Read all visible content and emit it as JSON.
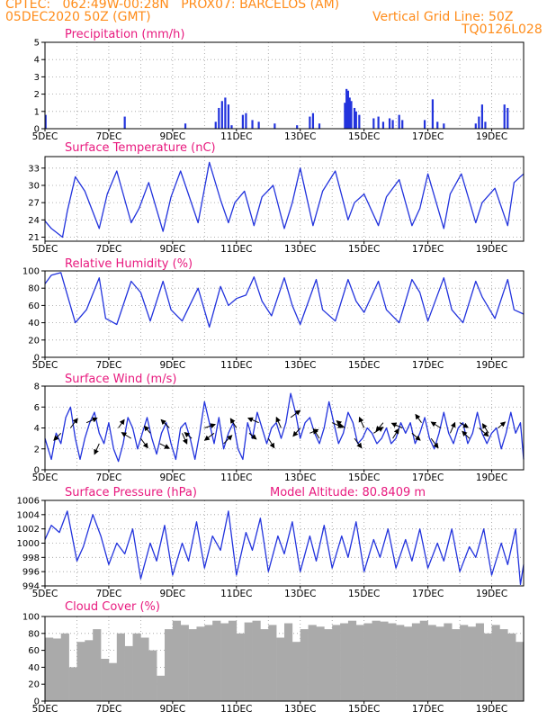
{
  "header": {
    "line1": "CPTEC:   062:49W-00:28N   PROX07: BARCELOS (AM)",
    "line2": "05DEC2020 50Z (GMT)",
    "grid_line": "Vertical Grid Line: 50Z",
    "code": "TQ0126L028"
  },
  "panel_titles": {
    "precip": "Precipitation  (mm/h)",
    "temp": "Surface Temperature  (nC)",
    "rh": "Relative Humidity  (%)",
    "wind": "Surface Wind  (m/s)",
    "pres": "Surface Pressure  (hPa)",
    "altitude": "Model Altitude:  80.8409  m",
    "cloud": "Cloud Cover  (%)"
  },
  "x_axis": {
    "labels": [
      "5DEC",
      "7DEC",
      "9DEC",
      "11DEC",
      "13DEC",
      "15DEC",
      "17DEC",
      "19DEC"
    ],
    "label_days": [
      5,
      7,
      9,
      11,
      13,
      15,
      17,
      19
    ],
    "start_day": 5,
    "end_day": 20,
    "grid": "dotted vertical lines each day"
  },
  "colors": {
    "header": "#ff8c1a",
    "title": "#e8197e",
    "series": "#2233dd",
    "cloud": "#aaaaaa",
    "frame": "#000000"
  },
  "chart_data": [
    {
      "type": "bar",
      "title": "Precipitation  (mm/h)",
      "ylim": [
        0,
        5
      ],
      "yticks": [
        0,
        1,
        2,
        3,
        4,
        5
      ],
      "x": [
        5.02,
        7.5,
        9.4,
        10.35,
        10.45,
        10.55,
        10.65,
        10.75,
        10.85,
        11.2,
        11.3,
        11.5,
        11.7,
        12.2,
        12.9,
        13.3,
        13.4,
        13.6,
        14.4,
        14.45,
        14.5,
        14.55,
        14.6,
        14.7,
        14.75,
        14.85,
        15.3,
        15.45,
        15.6,
        15.8,
        15.9,
        16.1,
        16.2,
        16.9,
        17.15,
        17.3,
        17.5,
        18.5,
        18.6,
        18.7,
        18.8,
        19.4,
        19.5
      ],
      "values": [
        0.8,
        0.7,
        0.3,
        0.4,
        1.2,
        1.6,
        1.8,
        1.4,
        0.2,
        0.8,
        0.9,
        0.5,
        0.4,
        0.3,
        0.2,
        0.7,
        0.9,
        0.3,
        1.5,
        2.3,
        2.2,
        1.8,
        1.6,
        1.2,
        1.0,
        0.8,
        0.6,
        0.7,
        0.4,
        0.6,
        0.5,
        0.8,
        0.5,
        0.5,
        1.7,
        0.4,
        0.3,
        0.3,
        0.7,
        1.4,
        0.4,
        1.4,
        1.2
      ]
    },
    {
      "type": "line",
      "title": "Surface Temperature  (nC)",
      "ylim": [
        20.3,
        35
      ],
      "yticks": [
        21,
        24,
        27,
        30,
        33
      ],
      "x": [
        5.0,
        5.2,
        5.55,
        5.7,
        5.95,
        6.25,
        6.7,
        6.95,
        7.25,
        7.7,
        7.95,
        8.25,
        8.7,
        8.95,
        9.25,
        9.8,
        10.15,
        10.5,
        10.75,
        10.95,
        11.25,
        11.55,
        11.8,
        12.15,
        12.5,
        12.75,
        13.0,
        13.4,
        13.7,
        14.1,
        14.5,
        14.7,
        15.0,
        15.45,
        15.7,
        16.1,
        16.5,
        16.75,
        17.0,
        17.5,
        17.7,
        18.05,
        18.5,
        18.7,
        19.1,
        19.5,
        19.7,
        20.0
      ],
      "values": [
        23.8,
        22.5,
        21.0,
        25.5,
        31.5,
        29.0,
        22.5,
        28.5,
        32.5,
        23.5,
        26.0,
        30.5,
        22.0,
        28.0,
        32.5,
        23.5,
        34.0,
        27.5,
        23.5,
        27.0,
        29.0,
        23.0,
        28.0,
        30.0,
        22.5,
        27.0,
        33.0,
        23.0,
        29.0,
        32.5,
        24.0,
        27.0,
        28.5,
        23.0,
        28.0,
        31.0,
        23.0,
        26.0,
        32.0,
        22.5,
        28.5,
        32.0,
        23.5,
        27.0,
        29.5,
        23.0,
        30.5,
        32.0
      ]
    },
    {
      "type": "line",
      "title": "Relative Humidity  (%)",
      "ylim": [
        0,
        100
      ],
      "yticks": [
        0,
        20,
        40,
        60,
        80,
        100
      ],
      "x": [
        5.0,
        5.2,
        5.5,
        5.95,
        6.3,
        6.7,
        6.9,
        7.25,
        7.7,
        8.0,
        8.3,
        8.7,
        8.95,
        9.3,
        9.8,
        10.15,
        10.5,
        10.75,
        11.0,
        11.3,
        11.55,
        11.8,
        12.1,
        12.5,
        12.75,
        13.0,
        13.5,
        13.7,
        14.1,
        14.5,
        14.75,
        15.0,
        15.45,
        15.7,
        16.1,
        16.5,
        16.75,
        17.0,
        17.5,
        17.75,
        18.1,
        18.5,
        18.7,
        19.1,
        19.5,
        19.7,
        20.0
      ],
      "values": [
        85,
        95,
        98,
        40,
        55,
        92,
        45,
        38,
        88,
        75,
        42,
        88,
        55,
        42,
        80,
        35,
        82,
        60,
        68,
        72,
        93,
        65,
        48,
        92,
        60,
        38,
        90,
        55,
        42,
        90,
        65,
        52,
        88,
        55,
        40,
        90,
        75,
        42,
        92,
        55,
        40,
        88,
        70,
        45,
        90,
        55,
        50
      ]
    },
    {
      "type": "line",
      "title": "Surface Wind  (m/s)",
      "ylim": [
        0,
        8
      ],
      "yticks": [
        0,
        2,
        4,
        6,
        8
      ],
      "x": [
        5.0,
        5.1,
        5.2,
        5.35,
        5.5,
        5.65,
        5.8,
        5.95,
        6.1,
        6.25,
        6.4,
        6.55,
        6.7,
        6.85,
        7.0,
        7.15,
        7.3,
        7.45,
        7.6,
        7.75,
        7.9,
        8.05,
        8.2,
        8.35,
        8.5,
        8.65,
        8.8,
        8.95,
        9.1,
        9.25,
        9.4,
        9.55,
        9.7,
        9.85,
        10.0,
        10.15,
        10.3,
        10.45,
        10.6,
        10.75,
        10.9,
        11.05,
        11.2,
        11.35,
        11.5,
        11.65,
        11.8,
        11.95,
        12.1,
        12.25,
        12.4,
        12.55,
        12.7,
        12.85,
        13.0,
        13.15,
        13.3,
        13.45,
        13.6,
        13.75,
        13.9,
        14.05,
        14.2,
        14.35,
        14.5,
        14.65,
        14.8,
        14.95,
        15.1,
        15.25,
        15.4,
        15.55,
        15.7,
        15.85,
        16.0,
        16.15,
        16.3,
        16.45,
        16.6,
        16.75,
        16.9,
        17.05,
        17.2,
        17.35,
        17.5,
        17.65,
        17.8,
        17.95,
        18.1,
        18.25,
        18.4,
        18.55,
        18.7,
        18.85,
        19.0,
        19.15,
        19.3,
        19.45,
        19.6,
        19.75,
        19.9,
        20.0
      ],
      "values": [
        3.0,
        2.0,
        1.0,
        3.5,
        2.5,
        5.0,
        6.0,
        3.0,
        1.0,
        3.0,
        4.5,
        5.5,
        3.5,
        2.5,
        4.5,
        2.0,
        0.8,
        2.5,
        5.0,
        4.0,
        2.0,
        3.5,
        5.0,
        3.0,
        1.5,
        3.5,
        4.5,
        2.5,
        1.0,
        4.0,
        4.5,
        3.0,
        1.0,
        3.5,
        6.5,
        4.5,
        2.5,
        5.0,
        2.0,
        3.5,
        4.5,
        2.0,
        1.0,
        4.5,
        3.0,
        5.5,
        4.0,
        2.5,
        4.0,
        4.5,
        3.0,
        4.5,
        7.3,
        5.5,
        3.0,
        4.5,
        5.0,
        3.5,
        2.5,
        4.0,
        6.5,
        4.5,
        2.5,
        3.5,
        5.5,
        4.5,
        2.5,
        3.0,
        4.0,
        3.5,
        2.5,
        3.0,
        4.0,
        2.5,
        3.0,
        4.5,
        3.5,
        4.5,
        2.5,
        3.5,
        5.0,
        3.0,
        2.0,
        3.5,
        5.5,
        3.5,
        2.5,
        4.0,
        4.5,
        2.5,
        3.5,
        5.5,
        3.5,
        2.5,
        3.5,
        4.0,
        2.0,
        3.5,
        5.5,
        3.5,
        4.5,
        1.0
      ]
    },
    {
      "type": "line",
      "title": "Surface Pressure  (hPa)",
      "ylim": [
        994,
        1006
      ],
      "yticks": [
        994,
        996,
        998,
        1000,
        1002,
        1004,
        1006
      ],
      "x": [
        5.0,
        5.2,
        5.45,
        5.7,
        6.0,
        6.2,
        6.5,
        6.75,
        7.0,
        7.25,
        7.5,
        7.75,
        8.0,
        8.3,
        8.5,
        8.75,
        9.0,
        9.3,
        9.5,
        9.75,
        10.0,
        10.25,
        10.5,
        10.75,
        11.0,
        11.3,
        11.5,
        11.75,
        12.0,
        12.3,
        12.5,
        12.75,
        13.0,
        13.3,
        13.5,
        13.75,
        14.0,
        14.3,
        14.5,
        14.75,
        15.0,
        15.3,
        15.5,
        15.75,
        16.0,
        16.3,
        16.5,
        16.75,
        17.0,
        17.3,
        17.5,
        17.75,
        18.0,
        18.3,
        18.5,
        18.75,
        19.0,
        19.3,
        19.5,
        19.75,
        19.9,
        20.0
      ],
      "values": [
        1000.5,
        1002.5,
        1001.5,
        1004.5,
        997.5,
        999.5,
        1004.0,
        1001.0,
        997.0,
        1000.0,
        998.5,
        1002.0,
        995.0,
        1000.0,
        997.5,
        1002.5,
        995.5,
        1000.0,
        997.5,
        1003.0,
        996.5,
        1001.0,
        999.0,
        1004.5,
        995.5,
        1001.5,
        999.0,
        1003.5,
        996.0,
        1001.0,
        998.5,
        1003.0,
        996.0,
        1001.0,
        997.5,
        1002.5,
        996.5,
        1001.0,
        998.0,
        1003.0,
        996.0,
        1000.5,
        998.0,
        1002.0,
        996.5,
        1000.5,
        997.5,
        1002.0,
        996.5,
        1000.0,
        997.5,
        1002.0,
        996.0,
        999.5,
        998.0,
        1002.0,
        995.5,
        1000.0,
        997.0,
        1002.0,
        994.2,
        997.0
      ]
    },
    {
      "type": "bar",
      "title": "Cloud Cover  (%)",
      "ylim": [
        0,
        100
      ],
      "yticks": [
        0,
        20,
        40,
        60,
        80,
        100
      ],
      "x": [
        5.0,
        5.25,
        5.5,
        5.75,
        6.0,
        6.25,
        6.5,
        6.75,
        7.0,
        7.25,
        7.5,
        7.75,
        8.0,
        8.25,
        8.5,
        8.75,
        9.0,
        9.25,
        9.5,
        9.75,
        10.0,
        10.25,
        10.5,
        10.75,
        11.0,
        11.25,
        11.5,
        11.75,
        12.0,
        12.25,
        12.5,
        12.75,
        13.0,
        13.25,
        13.5,
        13.75,
        14.0,
        14.25,
        14.5,
        14.75,
        15.0,
        15.25,
        15.5,
        15.75,
        16.0,
        16.25,
        16.5,
        16.75,
        17.0,
        17.25,
        17.5,
        17.75,
        18.0,
        18.25,
        18.5,
        18.75,
        19.0,
        19.25,
        19.5,
        19.75
      ],
      "values": [
        75,
        74,
        80,
        40,
        70,
        72,
        85,
        50,
        45,
        80,
        65,
        80,
        75,
        60,
        30,
        85,
        95,
        90,
        85,
        88,
        90,
        95,
        92,
        95,
        80,
        93,
        95,
        85,
        90,
        75,
        92,
        70,
        85,
        90,
        88,
        85,
        90,
        92,
        95,
        90,
        92,
        95,
        94,
        92,
        90,
        88,
        92,
        95,
        90,
        88,
        92,
        85,
        90,
        88,
        92,
        80,
        90,
        85,
        80,
        70
      ]
    }
  ],
  "wind_arrows": {
    "x": [
      5.5,
      5.8,
      6.3,
      6.7,
      7.3,
      7.7,
      8.0,
      8.3,
      8.6,
      8.9,
      9.3,
      9.6,
      10.0,
      10.3,
      10.6,
      11.0,
      11.4,
      11.7,
      12.0,
      12.4,
      12.7,
      13.0,
      13.3,
      13.6,
      14.0,
      14.4,
      14.7,
      15.0,
      15.3,
      15.6,
      15.9,
      16.2,
      16.5,
      16.8,
      17.1,
      17.4,
      17.7,
      18.0,
      18.3,
      18.6,
      18.9,
      19.2
    ],
    "y": [
      3.5,
      4.0,
      4.5,
      2.5,
      4.0,
      3.0,
      3.0,
      3.5,
      2.5,
      4.0,
      3.5,
      3.0,
      4.0,
      3.5,
      2.5,
      4.0,
      3.5,
      4.5,
      3.0,
      4.0,
      5.0,
      4.0,
      3.5,
      3.0,
      4.5,
      4.0,
      3.0,
      4.0,
      3.5,
      4.5,
      3.0,
      4.0,
      3.5,
      4.5,
      3.0,
      4.0,
      3.5,
      4.5,
      3.0,
      4.0,
      3.5,
      4.0
    ],
    "u": [
      -0.6,
      0.6,
      0.9,
      -0.4,
      0.5,
      -0.8,
      0.6,
      -0.5,
      0.8,
      -0.7,
      0.4,
      -0.6,
      0.9,
      -0.8,
      0.7,
      -0.5,
      0.6,
      -0.9,
      0.5,
      -0.4,
      0.8,
      -0.6,
      0.7,
      -0.5,
      0.9,
      -0.7,
      0.6,
      -0.4,
      0.8,
      -0.6,
      0.5,
      -0.9,
      0.7,
      -0.5,
      0.6,
      -0.8,
      0.4,
      0.7,
      -0.6,
      0.8,
      -0.5,
      0.6
    ],
    "v": [
      -0.6,
      0.8,
      0.4,
      -0.9,
      0.7,
      0.5,
      -0.8,
      0.6,
      -0.4,
      0.7,
      -0.9,
      0.5,
      0.3,
      -0.6,
      0.7,
      0.8,
      -0.5,
      0.4,
      -0.8,
      0.9,
      0.6,
      -0.7,
      0.3,
      0.8,
      -0.4,
      0.6,
      -0.8,
      0.9,
      0.5,
      -0.7,
      0.8,
      0.4,
      -0.6,
      0.7,
      -0.8,
      0.5,
      0.9,
      -0.4,
      0.6,
      -0.7,
      0.8,
      0.5
    ]
  }
}
